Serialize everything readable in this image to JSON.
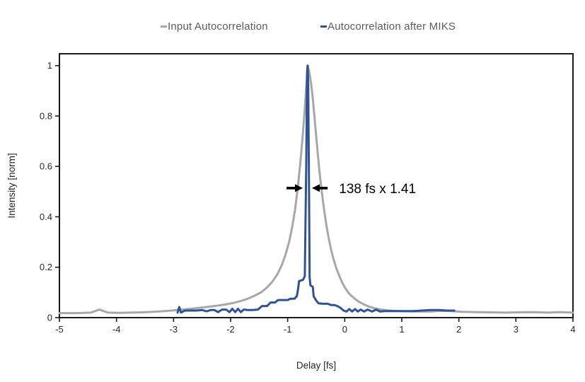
{
  "legend": {
    "items": [
      {
        "label": "Input Autocorrelation",
        "color": "#a7a7a7"
      },
      {
        "label": "Autocorrelation after MIKS",
        "color": "#2e5394"
      }
    ]
  },
  "chart_data": {
    "type": "line",
    "title": "",
    "xlabel": "Delay [fs]",
    "ylabel": "Intensity [norm]",
    "xlim": [
      -5,
      4
    ],
    "ylim": [
      0,
      1.047
    ],
    "xticks": [
      -5,
      -4,
      -3,
      -2,
      -1,
      0,
      1,
      2,
      3,
      4
    ],
    "yticks": [
      0,
      0.2,
      0.4,
      0.6,
      0.8,
      1
    ],
    "grid": false,
    "legend_position": "top",
    "axis_color": "#1a1a1a",
    "annotation": {
      "text": "138 fs x 1.41",
      "y": 0.514,
      "text_x": -0.1,
      "left_arrow": {
        "tail_x": -1.02,
        "tip_x": -0.735
      },
      "right_arrow": {
        "tail_x": -0.3,
        "tip_x": -0.574
      },
      "color": "#000000"
    },
    "series": [
      {
        "name": "Input Autocorrelation",
        "color": "#a7a7a7",
        "width": 3,
        "points": [
          [
            -5,
            0.018
          ],
          [
            -4.7,
            0.018
          ],
          [
            -4.45,
            0.02
          ],
          [
            -4.3,
            0.032
          ],
          [
            -4.15,
            0.02
          ],
          [
            -3.95,
            0.019
          ],
          [
            -3.75,
            0.02
          ],
          [
            -3.55,
            0.021
          ],
          [
            -3.35,
            0.023
          ],
          [
            -3.15,
            0.026
          ],
          [
            -3.0,
            0.029
          ],
          [
            -2.85,
            0.032
          ],
          [
            -2.7,
            0.035
          ],
          [
            -2.55,
            0.039
          ],
          [
            -2.4,
            0.043
          ],
          [
            -2.25,
            0.047
          ],
          [
            -2.1,
            0.052
          ],
          [
            -1.95,
            0.058
          ],
          [
            -1.82,
            0.066
          ],
          [
            -1.7,
            0.075
          ],
          [
            -1.58,
            0.087
          ],
          [
            -1.47,
            0.1
          ],
          [
            -1.37,
            0.118
          ],
          [
            -1.27,
            0.142
          ],
          [
            -1.18,
            0.172
          ],
          [
            -1.1,
            0.21
          ],
          [
            -1.03,
            0.255
          ],
          [
            -0.97,
            0.305
          ],
          [
            -0.92,
            0.36
          ],
          [
            -0.87,
            0.43
          ],
          [
            -0.82,
            0.52
          ],
          [
            -0.78,
            0.61
          ],
          [
            -0.74,
            0.71
          ],
          [
            -0.7,
            0.83
          ],
          [
            -0.67,
            0.93
          ],
          [
            -0.65,
            1.0
          ],
          [
            -0.62,
            0.975
          ],
          [
            -0.59,
            0.93
          ],
          [
            -0.56,
            0.87
          ],
          [
            -0.52,
            0.77
          ],
          [
            -0.48,
            0.67
          ],
          [
            -0.44,
            0.575
          ],
          [
            -0.4,
            0.495
          ],
          [
            -0.36,
            0.425
          ],
          [
            -0.32,
            0.365
          ],
          [
            -0.28,
            0.315
          ],
          [
            -0.24,
            0.27
          ],
          [
            -0.2,
            0.235
          ],
          [
            -0.15,
            0.198
          ],
          [
            -0.1,
            0.168
          ],
          [
            -0.05,
            0.142
          ],
          [
            0.0,
            0.12
          ],
          [
            0.06,
            0.1
          ],
          [
            0.12,
            0.086
          ],
          [
            0.18,
            0.074
          ],
          [
            0.25,
            0.063
          ],
          [
            0.33,
            0.053
          ],
          [
            0.42,
            0.044
          ],
          [
            0.52,
            0.037
          ],
          [
            0.64,
            0.032
          ],
          [
            0.78,
            0.028
          ],
          [
            0.92,
            0.026
          ],
          [
            1.1,
            0.025
          ],
          [
            1.3,
            0.024
          ],
          [
            1.5,
            0.024
          ],
          [
            1.68,
            0.027
          ],
          [
            1.85,
            0.026
          ],
          [
            2.05,
            0.023
          ],
          [
            2.3,
            0.022
          ],
          [
            2.55,
            0.021
          ],
          [
            2.8,
            0.02
          ],
          [
            3.05,
            0.021
          ],
          [
            3.3,
            0.022
          ],
          [
            3.55,
            0.02
          ],
          [
            3.75,
            0.022
          ],
          [
            4.0,
            0.02
          ]
        ]
      },
      {
        "name": "Autocorrelation after MIKS",
        "color": "#2e5394",
        "width": 3,
        "points": [
          [
            -2.93,
            0.02
          ],
          [
            -2.9,
            0.042
          ],
          [
            -2.87,
            0.02
          ],
          [
            -2.8,
            0.028
          ],
          [
            -2.6,
            0.028
          ],
          [
            -2.5,
            0.03
          ],
          [
            -2.42,
            0.025
          ],
          [
            -2.35,
            0.03
          ],
          [
            -2.28,
            0.03
          ],
          [
            -2.22,
            0.022
          ],
          [
            -2.15,
            0.032
          ],
          [
            -2.08,
            0.032
          ],
          [
            -2.02,
            0.022
          ],
          [
            -1.97,
            0.035
          ],
          [
            -1.92,
            0.022
          ],
          [
            -1.87,
            0.035
          ],
          [
            -1.82,
            0.022
          ],
          [
            -1.77,
            0.032
          ],
          [
            -1.7,
            0.03
          ],
          [
            -1.62,
            0.03
          ],
          [
            -1.52,
            0.032
          ],
          [
            -1.45,
            0.046
          ],
          [
            -1.36,
            0.046
          ],
          [
            -1.3,
            0.06
          ],
          [
            -1.22,
            0.06
          ],
          [
            -1.17,
            0.07
          ],
          [
            -1.0,
            0.07
          ],
          [
            -0.95,
            0.075
          ],
          [
            -0.88,
            0.075
          ],
          [
            -0.84,
            0.085
          ],
          [
            -0.82,
            0.11
          ],
          [
            -0.8,
            0.145
          ],
          [
            -0.73,
            0.15
          ],
          [
            -0.7,
            0.165
          ],
          [
            -0.675,
            0.6
          ],
          [
            -0.66,
            0.97
          ],
          [
            -0.65,
            1.0
          ],
          [
            -0.64,
            0.93
          ],
          [
            -0.625,
            0.5
          ],
          [
            -0.615,
            0.16
          ],
          [
            -0.6,
            0.128
          ],
          [
            -0.56,
            0.122
          ],
          [
            -0.545,
            0.085
          ],
          [
            -0.5,
            0.068
          ],
          [
            -0.46,
            0.057
          ],
          [
            -0.38,
            0.055
          ],
          [
            -0.3,
            0.055
          ],
          [
            -0.24,
            0.05
          ],
          [
            -0.18,
            0.05
          ],
          [
            -0.12,
            0.045
          ],
          [
            -0.07,
            0.038
          ],
          [
            -0.02,
            0.028
          ],
          [
            0.03,
            0.024
          ],
          [
            0.08,
            0.034
          ],
          [
            0.13,
            0.024
          ],
          [
            0.18,
            0.034
          ],
          [
            0.23,
            0.024
          ],
          [
            0.28,
            0.032
          ],
          [
            0.34,
            0.024
          ],
          [
            0.4,
            0.032
          ],
          [
            0.48,
            0.024
          ],
          [
            0.55,
            0.032
          ],
          [
            0.62,
            0.024
          ],
          [
            0.7,
            0.026
          ],
          [
            0.85,
            0.026
          ],
          [
            1.0,
            0.026
          ],
          [
            1.2,
            0.026
          ],
          [
            1.35,
            0.028
          ],
          [
            1.5,
            0.03
          ],
          [
            1.65,
            0.03
          ],
          [
            1.8,
            0.028
          ],
          [
            1.92,
            0.028
          ]
        ]
      }
    ]
  }
}
